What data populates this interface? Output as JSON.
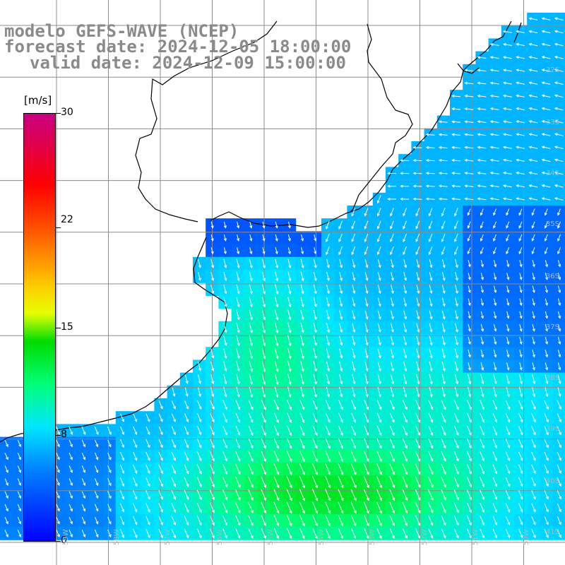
{
  "header": {
    "model_title": "modelo GEFS-WAVE (NCEP)",
    "forecast_line": "forecast date: 2024-12-05 18:00:00",
    "valid_line": "valid date: 2024-12-09 15:00:00"
  },
  "colorbar": {
    "units": "[m/s]",
    "ticks": [
      "30",
      "22",
      "15",
      "8",
      "0"
    ],
    "tick_values": [
      30,
      22,
      15,
      8,
      0
    ],
    "range": [
      0,
      30
    ]
  },
  "map": {
    "lat_labels": [
      "32S",
      "33S",
      "34S",
      "35S",
      "36S",
      "37S",
      "38S",
      "39S",
      "40S",
      "41S"
    ],
    "lon_labels": [
      "59W",
      "58W",
      "57W",
      "56W",
      "55W",
      "54W",
      "53W",
      "52W",
      "51W",
      "50W"
    ],
    "colors": {
      "land": "#ffffff",
      "coast": "#000000",
      "grid": "#8c8c8c",
      "arrows": "#ffffff"
    },
    "field": "wind speed (10 m)"
  }
}
